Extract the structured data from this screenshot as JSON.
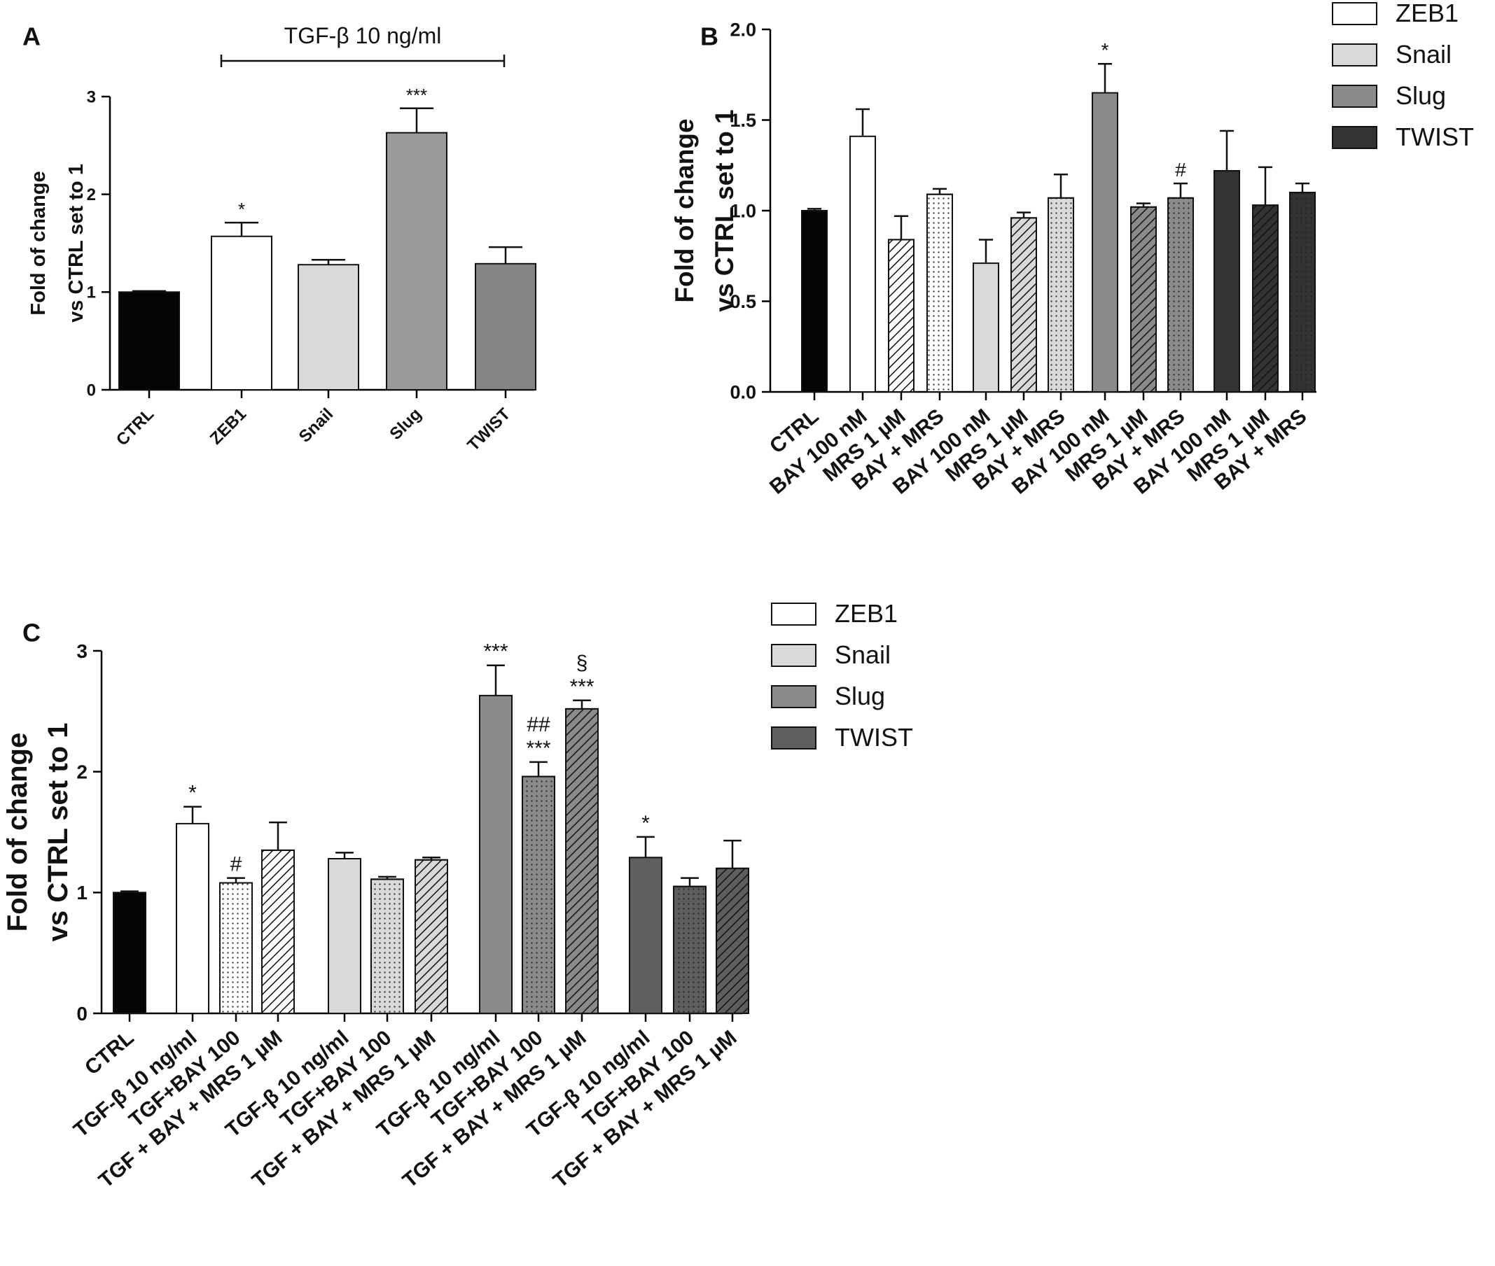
{
  "colors": {
    "ctrl": "#050505",
    "zeb1": "#ffffff",
    "snail": "#d9d9d9",
    "slug": "#9a9a9a",
    "slug_b": "#8a8a8a",
    "slug_c": "#8a8a8a",
    "twist": "#858585",
    "twist_b": "#333333",
    "twist_c": "#5e5e5e",
    "axis": "#000000"
  },
  "chart_data": [
    {
      "panel": "A",
      "type": "bar",
      "panel_label": "A",
      "bracket_label": "TGF-β 10 ng/ml",
      "ylabel": [
        "Fold of change",
        "vs CTRL set to 1"
      ],
      "ylim": [
        0,
        3
      ],
      "yticks": [
        "0",
        "1",
        "2",
        "3"
      ],
      "categories": [
        "CTRL",
        "ZEB1",
        "Snail",
        "Slug",
        "TWIST"
      ],
      "values": [
        1.0,
        1.57,
        1.28,
        2.63,
        1.29
      ],
      "errors": [
        0.01,
        0.14,
        0.05,
        0.25,
        0.17
      ],
      "fills": [
        "ctrl",
        "zeb1",
        "snail",
        "slug",
        "twist"
      ],
      "patterns": [
        "solid",
        "solid",
        "solid",
        "solid",
        "solid"
      ],
      "annotations": [
        [],
        [
          "*"
        ],
        [],
        [
          "***"
        ],
        []
      ]
    },
    {
      "panel": "B",
      "type": "bar",
      "panel_label": "B",
      "ylabel": [
        "Fold of change",
        "vs CTRL set to 1"
      ],
      "ylim": [
        0,
        2
      ],
      "yticks": [
        "0.0",
        "0.5",
        "1.0",
        "1.5",
        "2.0"
      ],
      "categories": [
        "CTRL",
        "BAY 100 nM",
        "MRS 1 µM",
        "BAY + MRS",
        "BAY 100 nM",
        "MRS 1 µM",
        "BAY + MRS",
        "BAY 100 nM",
        "MRS 1 µM",
        "BAY + MRS",
        "BAY 100 nM",
        "MRS 1 µM",
        "BAY + MRS"
      ],
      "values": [
        1.0,
        1.41,
        0.84,
        1.09,
        0.71,
        0.96,
        1.07,
        1.65,
        1.02,
        1.07,
        1.22,
        1.03,
        1.1
      ],
      "errors": [
        0.01,
        0.15,
        0.13,
        0.03,
        0.13,
        0.03,
        0.13,
        0.16,
        0.02,
        0.08,
        0.22,
        0.21,
        0.05
      ],
      "fills": [
        "ctrl",
        "zeb1",
        "zeb1",
        "zeb1",
        "snail",
        "snail",
        "snail",
        "slug_b",
        "slug_b",
        "slug_b",
        "twist_b",
        "twist_b",
        "twist_b"
      ],
      "patterns": [
        "solid",
        "solid",
        "hatch",
        "dots",
        "solid",
        "hatch",
        "dots",
        "solid",
        "hatch",
        "dots",
        "solid",
        "hatch",
        "dots"
      ],
      "annotations": [
        [],
        [],
        [],
        [],
        [],
        [],
        [],
        [
          "*"
        ],
        [],
        [
          "#"
        ],
        [],
        [],
        []
      ],
      "legend": [
        "ZEB1",
        "Snail",
        "Slug",
        "TWIST"
      ],
      "legend_fills": [
        "zeb1",
        "snail",
        "slug_b",
        "twist_b"
      ]
    },
    {
      "panel": "C",
      "type": "bar",
      "panel_label": "C",
      "ylabel": [
        "Fold of change",
        "vs CTRL set to 1"
      ],
      "ylim": [
        0,
        3
      ],
      "yticks": [
        "0",
        "1",
        "2",
        "3"
      ],
      "categories": [
        "CTRL",
        "TGF-β 10 ng/ml",
        "TGF+BAY 100",
        "TGF + BAY + MRS 1 µM",
        "TGF-β 10 ng/ml",
        "TGF+BAY 100",
        "TGF + BAY + MRS 1 µM",
        "TGF-β 10 ng/ml",
        "TGF+BAY 100",
        "TGF + BAY + MRS 1 µM",
        "TGF-β 10 ng/ml",
        "TGF+BAY 100",
        "TGF + BAY + MRS 1 µM"
      ],
      "values": [
        1.0,
        1.57,
        1.08,
        1.35,
        1.28,
        1.11,
        1.27,
        2.63,
        1.96,
        2.52,
        1.29,
        1.05,
        1.2
      ],
      "errors": [
        0.01,
        0.14,
        0.04,
        0.23,
        0.05,
        0.02,
        0.02,
        0.25,
        0.12,
        0.07,
        0.17,
        0.07,
        0.23
      ],
      "fills": [
        "ctrl",
        "zeb1",
        "zeb1",
        "zeb1",
        "snail",
        "snail",
        "snail",
        "slug_c",
        "slug_c",
        "slug_c",
        "twist_c",
        "twist_c",
        "twist_c"
      ],
      "patterns": [
        "solid",
        "solid",
        "dots",
        "hatch",
        "solid",
        "dots",
        "hatch",
        "solid",
        "dots",
        "hatch",
        "solid",
        "dots",
        "hatch"
      ],
      "annotations": [
        [],
        [
          "*"
        ],
        [
          "#"
        ],
        [],
        [],
        [],
        [],
        [
          "***"
        ],
        [
          "##",
          "***"
        ],
        [
          "§",
          "***"
        ],
        [
          "*"
        ],
        [],
        []
      ],
      "legend": [
        "ZEB1",
        "Snail",
        "Slug",
        "TWIST"
      ],
      "legend_fills": [
        "zeb1",
        "snail",
        "slug_c",
        "twist_c"
      ]
    }
  ]
}
